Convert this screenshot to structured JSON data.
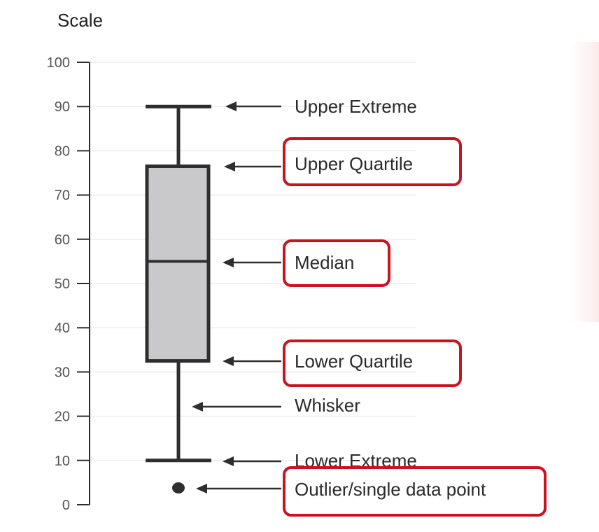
{
  "chart_data": {
    "type": "box",
    "ylabel": "Scale",
    "ylim": [
      0,
      100
    ],
    "yticks": [
      0,
      10,
      20,
      30,
      40,
      50,
      60,
      70,
      80,
      90,
      100
    ],
    "grid": true,
    "box": {
      "upper_extreme": 90,
      "upper_quartile": 76.5,
      "median": 55,
      "lower_quartile": 32.5,
      "lower_extreme": 10,
      "outliers": [
        3.8
      ]
    },
    "annotations": [
      {
        "label": "Upper Extreme",
        "points_to": "upper_extreme",
        "highlighted": false
      },
      {
        "label": "Upper Quartile",
        "points_to": "upper_quartile",
        "highlighted": true
      },
      {
        "label": "Median",
        "points_to": "median",
        "highlighted": true
      },
      {
        "label": "Lower Quartile",
        "points_to": "lower_quartile",
        "highlighted": true
      },
      {
        "label": "Whisker",
        "points_to": "whisker",
        "highlighted": false
      },
      {
        "label": "Lower Extreme",
        "points_to": "lower_extreme",
        "highlighted": false
      },
      {
        "label": "Outlier/single data point",
        "points_to": "outlier",
        "highlighted": true
      }
    ],
    "colors": {
      "box_fill": "#c9c9cb",
      "stroke": "#2e2e2e",
      "highlight_border": "#c8141e",
      "tick_text": "#555555",
      "grid": "#ececec"
    }
  }
}
